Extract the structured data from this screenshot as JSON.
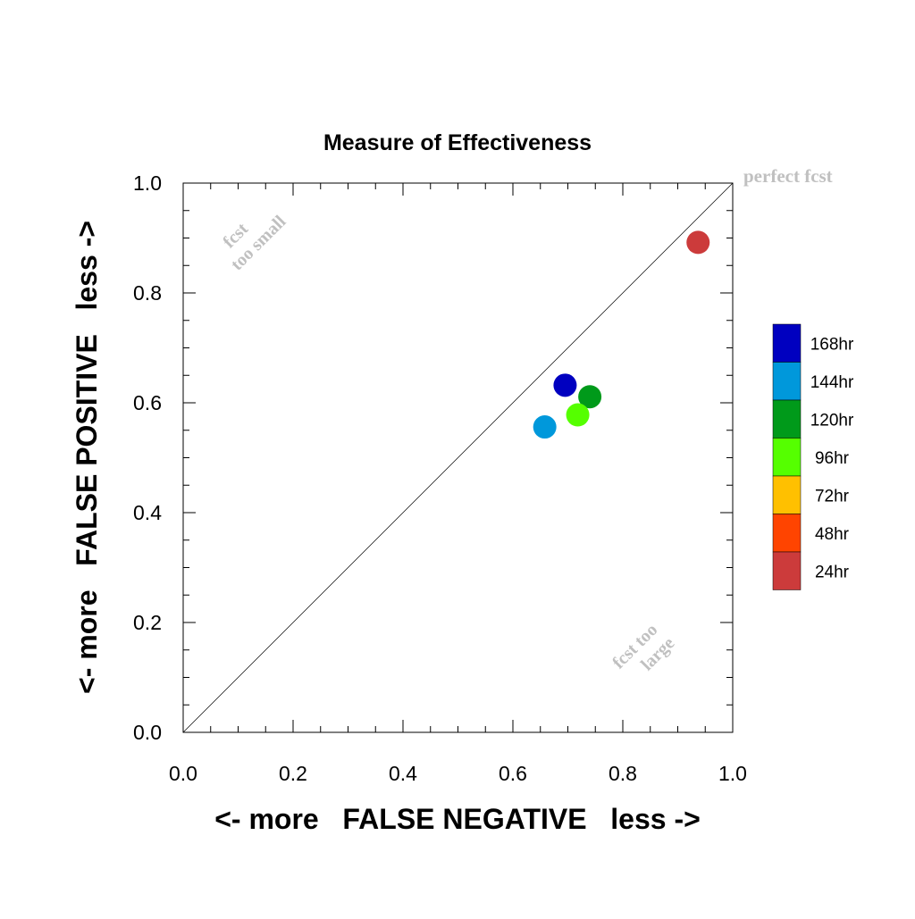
{
  "chart_data": {
    "type": "scatter",
    "title": "Measure of Effectiveness",
    "xlabel": "<- more   FALSE NEGATIVE   less ->",
    "ylabel": "<- more   FALSE POSITIVE   less ->",
    "xlim": [
      0.0,
      1.0
    ],
    "ylim": [
      0.0,
      1.0
    ],
    "x_ticks": [
      "0.0",
      "0.2",
      "0.4",
      "0.6",
      "0.8",
      "1.0"
    ],
    "y_ticks": [
      "0.0",
      "0.2",
      "0.4",
      "0.6",
      "0.8",
      "1.0"
    ],
    "grid": false,
    "diagonal_line": true,
    "annotations": {
      "perfect": "perfect fcst",
      "small_line1": "fcst",
      "small_line2": "too small",
      "large_line1": "fcst too",
      "large_line2": "large"
    },
    "legend": {
      "placement": "right",
      "entries": [
        {
          "label": "168hr",
          "color": "#0000c0"
        },
        {
          "label": "144hr",
          "color": "#0098db"
        },
        {
          "label": "120hr",
          "color": "#009a1a"
        },
        {
          "label": "96hr",
          "color": "#55ff00"
        },
        {
          "label": "72hr",
          "color": "#ffc000"
        },
        {
          "label": "48hr",
          "color": "#ff4400"
        },
        {
          "label": "24hr",
          "color": "#cc3b3b"
        }
      ]
    },
    "series": [
      {
        "lead": "168hr",
        "x": 0.695,
        "y": 0.632,
        "color": "#0000c0"
      },
      {
        "lead": "144hr",
        "x": 0.658,
        "y": 0.556,
        "color": "#0098db"
      },
      {
        "lead": "120hr",
        "x": 0.74,
        "y": 0.611,
        "color": "#009a1a"
      },
      {
        "lead": "96hr",
        "x": 0.718,
        "y": 0.578,
        "color": "#55ff00"
      },
      {
        "lead": "24hr",
        "x": 0.937,
        "y": 0.892,
        "color": "#cc3b3b"
      }
    ]
  }
}
